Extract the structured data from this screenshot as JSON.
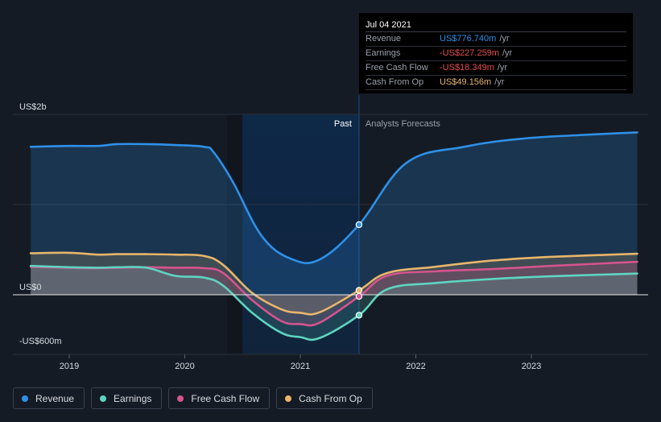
{
  "chart_data": {
    "type": "line",
    "x_axis_ticks": [
      "2019",
      "2020",
      "2021",
      "2022",
      "2023"
    ],
    "y_axis_labels": [
      "US$2b",
      "US$0",
      "-US$600m"
    ],
    "ylim": [
      -600,
      2000
    ],
    "y_unit": "US$m",
    "past_label": "Past",
    "forecast_label": "Analysts Forecasts",
    "past_divider_date": "2021-07-04",
    "shaded_region": [
      "2020-07",
      "2021-07-04"
    ],
    "legend_position": "bottom-left",
    "grid": "horizontal",
    "series": [
      {
        "name": "Revenue",
        "color": "#2e90e8",
        "points": [
          [
            "2018-09",
            1640
          ],
          [
            "2019-01",
            1650
          ],
          [
            "2019-04",
            1650
          ],
          [
            "2019-06",
            1670
          ],
          [
            "2019-09",
            1670
          ],
          [
            "2019-12",
            1660
          ],
          [
            "2020-03",
            1640
          ],
          [
            "2020-04",
            1580
          ],
          [
            "2020-06",
            1250
          ],
          [
            "2020-09",
            650
          ],
          [
            "2020-12",
            400
          ],
          [
            "2021-03",
            390
          ],
          [
            "2021-07-04",
            777
          ],
          [
            "2021-12",
            1460
          ],
          [
            "2022-06",
            1640
          ],
          [
            "2022-12",
            1730
          ],
          [
            "2023-06",
            1770
          ],
          [
            "2023-12",
            1800
          ]
        ]
      },
      {
        "name": "Earnings",
        "color": "#5ed4c0",
        "points": [
          [
            "2018-09",
            320
          ],
          [
            "2019-01",
            305
          ],
          [
            "2019-04",
            300
          ],
          [
            "2019-06",
            305
          ],
          [
            "2019-09",
            300
          ],
          [
            "2019-12",
            210
          ],
          [
            "2020-03",
            190
          ],
          [
            "2020-05",
            100
          ],
          [
            "2020-08",
            -200
          ],
          [
            "2020-11",
            -420
          ],
          [
            "2021-01",
            -470
          ],
          [
            "2021-03",
            -480
          ],
          [
            "2021-07-04",
            -227
          ],
          [
            "2021-10",
            60
          ],
          [
            "2022-03",
            130
          ],
          [
            "2022-09",
            175
          ],
          [
            "2023-03",
            205
          ],
          [
            "2023-12",
            235
          ]
        ]
      },
      {
        "name": "Free Cash Flow",
        "color": "#d4548e",
        "points": [
          [
            "2018-09",
            310
          ],
          [
            "2019-01",
            300
          ],
          [
            "2019-04",
            295
          ],
          [
            "2019-06",
            300
          ],
          [
            "2019-09",
            305
          ],
          [
            "2019-12",
            300
          ],
          [
            "2020-03",
            295
          ],
          [
            "2020-05",
            240
          ],
          [
            "2020-08",
            -60
          ],
          [
            "2020-11",
            -290
          ],
          [
            "2021-01",
            -325
          ],
          [
            "2021-03",
            -310
          ],
          [
            "2021-07-04",
            -18
          ],
          [
            "2021-10",
            210
          ],
          [
            "2022-03",
            260
          ],
          [
            "2022-09",
            285
          ],
          [
            "2023-03",
            320
          ],
          [
            "2023-12",
            365
          ]
        ]
      },
      {
        "name": "Cash From Op",
        "color": "#e8b56b",
        "points": [
          [
            "2018-09",
            460
          ],
          [
            "2019-01",
            465
          ],
          [
            "2019-04",
            445
          ],
          [
            "2019-06",
            450
          ],
          [
            "2019-09",
            450
          ],
          [
            "2019-12",
            445
          ],
          [
            "2020-03",
            430
          ],
          [
            "2020-05",
            330
          ],
          [
            "2020-08",
            20
          ],
          [
            "2020-11",
            -160
          ],
          [
            "2021-01",
            -200
          ],
          [
            "2021-03",
            -195
          ],
          [
            "2021-07-04",
            49
          ],
          [
            "2021-10",
            240
          ],
          [
            "2022-03",
            310
          ],
          [
            "2022-09",
            380
          ],
          [
            "2023-03",
            420
          ],
          [
            "2023-12",
            455
          ]
        ]
      }
    ]
  },
  "tooltip": {
    "date": "Jul 04 2021",
    "rows": [
      {
        "label": "Revenue",
        "value": "US$776.740m",
        "unit": "/yr",
        "color": "#2e90e8"
      },
      {
        "label": "Earnings",
        "value": "-US$227.259m",
        "unit": "/yr",
        "color": "#e84a4a"
      },
      {
        "label": "Free Cash Flow",
        "value": "-US$18.349m",
        "unit": "/yr",
        "color": "#e84a4a"
      },
      {
        "label": "Cash From Op",
        "value": "US$49.156m",
        "unit": "/yr",
        "color": "#e8b56b"
      }
    ]
  },
  "legend": [
    {
      "label": "Revenue",
      "color": "#2e90e8"
    },
    {
      "label": "Earnings",
      "color": "#5ed4c0"
    },
    {
      "label": "Free Cash Flow",
      "color": "#d4548e"
    },
    {
      "label": "Cash From Op",
      "color": "#e8b56b"
    }
  ]
}
